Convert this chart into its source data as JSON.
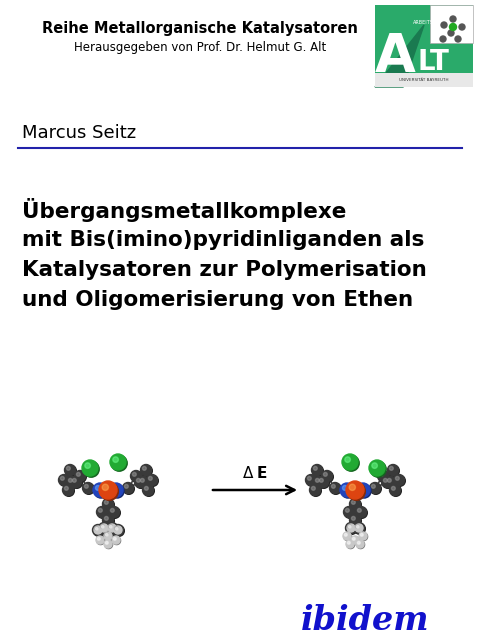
{
  "series_title": "Reihe Metallorganische Katalysatoren",
  "series_subtitle": "Herausgegeben von Prof. Dr. Helmut G. Alt",
  "author": "Marcus Seitz",
  "title_line1": "Übergangsmetallkomplexe",
  "title_line2": "mit Bis(imino)pyridinliganden als",
  "title_line3": "Katalysatoren zur Polymerisation",
  "title_line4": "und Oligomerisierung von Ethen",
  "publisher": "ibidem",
  "bg_color": "#ffffff",
  "text_color": "#000000",
  "blue_line_color": "#2222aa",
  "publisher_color": "#1111cc",
  "series_title_fontsize": 10.5,
  "series_subtitle_fontsize": 8.5,
  "author_fontsize": 13,
  "title_fontsize": 15.5,
  "publisher_fontsize": 24,
  "arrow_label_delta": "Δ",
  "arrow_label_E": "E",
  "logo_green_dark": "#1a7a50",
  "logo_green_light": "#2aaa70"
}
